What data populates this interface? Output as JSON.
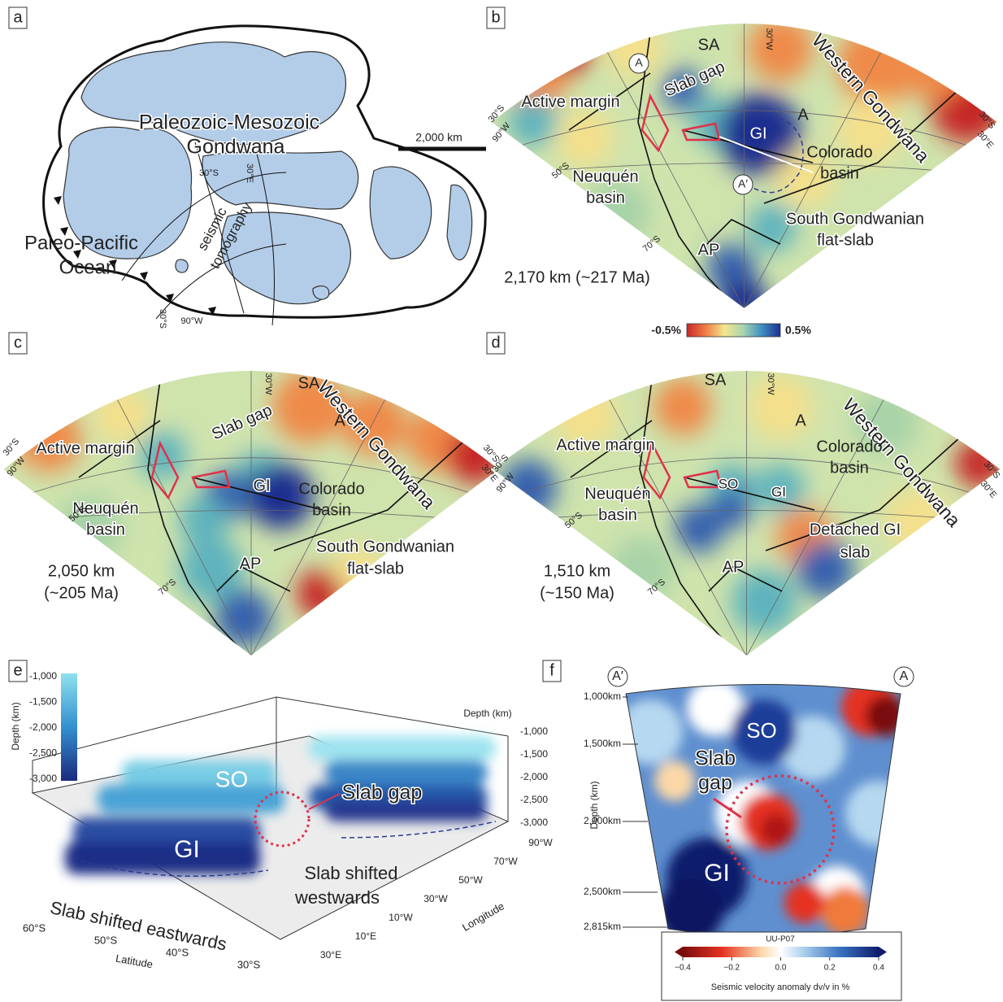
{
  "panel_a": {
    "label": "a",
    "gondwana": [
      "Paleozoic-Mesozoic",
      "Gondwana"
    ],
    "scale": "2,000 km",
    "lat": "30°S",
    "lon": "30°E",
    "tomography": [
      "seismic",
      "tomography"
    ],
    "ocean": [
      "Paleo-Pacific",
      "Ocean"
    ],
    "corner_lat": "30°S",
    "corner_lon": "90°W"
  },
  "panel_b": {
    "label": "b",
    "sa": "SA",
    "a_point": "A",
    "slab_gap": "Slab gap",
    "western": "Western Gondwana",
    "active": "Active margin",
    "gi": "GI",
    "a_region": "A",
    "colorado": [
      "Colorado",
      "basin"
    ],
    "a_prime": "A′",
    "neuquen": [
      "Neuquén",
      "basin"
    ],
    "flat_slab": [
      "South Gondwanian",
      "flat-slab"
    ],
    "ap": "AP",
    "depth": "2,170 km (~217 Ma)",
    "lon_top": "30°W",
    "lat_left": "30°S",
    "lon_left": "90°W",
    "lat_50": "50°S",
    "lat_70": "70°S",
    "lat_right": "30°S",
    "lon_right": "30°E"
  },
  "colorbar": {
    "min": "-0.5%",
    "max": "0.5%"
  },
  "panel_c": {
    "label": "c",
    "sa": "SA",
    "slab_gap": "Slab gap",
    "western": "Western Gondwana",
    "active": "Active margin",
    "a_region": "A",
    "gi": "GI",
    "colorado": [
      "Colorado",
      "basin"
    ],
    "neuquen": [
      "Neuquén",
      "basin"
    ],
    "flat_slab": [
      "South Gondwanian",
      "flat-slab"
    ],
    "ap": "AP",
    "depth": [
      "2,050 km",
      "(~205 Ma)"
    ],
    "lon_top": "30°W",
    "lat_left": "30°S",
    "lon_left": "90°W",
    "lat_50": "50°S",
    "lat_70": "70°S",
    "lat_right": "30°S",
    "lon_right": "30°E"
  },
  "panel_d": {
    "label": "d",
    "sa": "SA",
    "a_region": "A",
    "western": "Western Gondwana",
    "active": "Active margin",
    "colorado": [
      "Colorado",
      "basin"
    ],
    "so": "SO",
    "gi": "GI",
    "neuquen": [
      "Neuquén",
      "basin"
    ],
    "detached": [
      "Detached GI",
      "slab"
    ],
    "ap": "AP",
    "depth": [
      "1,510 km",
      "(~150 Ma)"
    ],
    "lon_top": "30°W",
    "lat_left": "30°S",
    "lon_left": "90°W",
    "lat_50": "50°S",
    "lat_70": "70°S",
    "lat_right": "30°S",
    "lon_right": "30°E"
  },
  "panel_e": {
    "label": "e",
    "colorbar_title": "Depth (km)",
    "colorbar_ticks": [
      "-1,000",
      "-1,500",
      "-2,000",
      "-2,500",
      "-3,000"
    ],
    "depth_title": "Depth (km)",
    "depth_ticks": [
      "-1,000",
      "-1,500",
      "-2,000",
      "-2,500",
      "-3,000"
    ],
    "longitude_ticks": [
      "90°W",
      "70°W",
      "50°W",
      "30°W",
      "10°W",
      "10°E",
      "30°E"
    ],
    "longitude_title": "Longitude",
    "latitude_ticks": [
      "60°S",
      "50°S",
      "40°S",
      "30°S"
    ],
    "latitude_title": "Latitude",
    "so": "SO",
    "slab_gap": "Slab gap",
    "gi": "GI",
    "westwards": [
      "Slab shifted",
      "westwards"
    ],
    "eastwards": "Slab shifted eastwards"
  },
  "panel_f": {
    "label": "f",
    "a_prime": "A′",
    "a": "A",
    "depth_ticks": [
      "1,000km",
      "1,500km",
      "2,000km",
      "2,500km",
      "2,815km"
    ],
    "depth_title": "Depth (km)",
    "so": "SO",
    "slab_gap": [
      "Slab",
      "gap"
    ],
    "gi": "GI",
    "colorbar_title": "UU-P07",
    "colorbar_ticks": [
      "−0.4",
      "−0.2",
      "0.0",
      "0.2",
      "0.4"
    ],
    "colorbar_label": "Seismic velocity anomaly dv/v in %"
  }
}
